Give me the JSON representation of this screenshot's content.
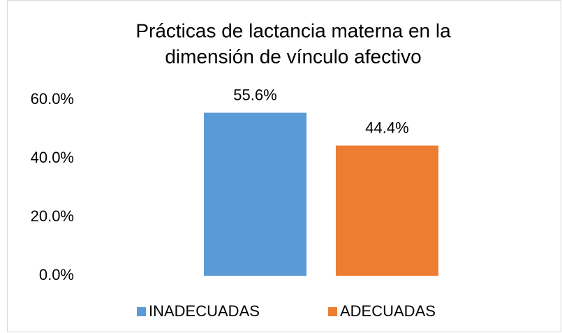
{
  "chart_data": {
    "type": "bar",
    "title": [
      "Prácticas de lactancia materna en la",
      "dimensión de vínculo afectivo"
    ],
    "categories": [
      null
    ],
    "series": [
      {
        "name": "INADECUADAS",
        "color": "#5b9bd5",
        "values": [
          55.6
        ],
        "value_labels": [
          "55.6%"
        ]
      },
      {
        "name": "ADECUADAS",
        "color": "#ed7d31",
        "values": [
          44.4
        ],
        "value_labels": [
          "44.4%"
        ]
      }
    ],
    "ylim": [
      0,
      60
    ],
    "yticks": [
      {
        "value": 0,
        "label": "0.0%"
      },
      {
        "value": 20,
        "label": "20.0%"
      },
      {
        "value": 40,
        "label": "40.0%"
      },
      {
        "value": 60,
        "label": "60.0%"
      }
    ],
    "grid": false,
    "legend": "bottom"
  }
}
